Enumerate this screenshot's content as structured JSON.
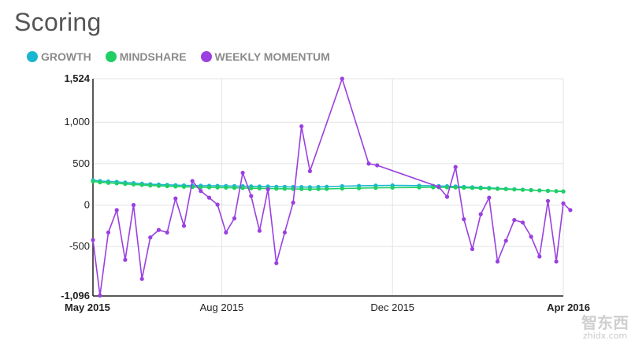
{
  "header": {
    "title": "Scoring"
  },
  "legend": [
    {
      "label": "GROWTH",
      "color": "#19b7cf"
    },
    {
      "label": "MINDSHARE",
      "color": "#1fcf64"
    },
    {
      "label": "WEEKLY MOMENTUM",
      "color": "#9a3fe0"
    }
  ],
  "watermark": {
    "main": "智东西",
    "sub": "zhidx.com"
  },
  "chart_data": {
    "type": "line",
    "title": "Scoring",
    "xlabel": "",
    "ylabel": "",
    "xlim": [
      "2015-05-01",
      "2016-04-01"
    ],
    "ylim": [
      -1096,
      1524
    ],
    "y_ticks": [
      {
        "label": "1,524",
        "value": 1524,
        "bold": true
      },
      {
        "label": "1,000",
        "value": 1000,
        "bold": false
      },
      {
        "label": "500",
        "value": 500,
        "bold": false
      },
      {
        "label": "0",
        "value": 0,
        "bold": false
      },
      {
        "label": "-500",
        "value": -500,
        "bold": false
      },
      {
        "label": "-1,096",
        "value": -1096,
        "bold": true
      }
    ],
    "x_ticks": [
      {
        "label": "May 2015",
        "date": "2015-05-01",
        "bold": true,
        "grid": false
      },
      {
        "label": "Aug 2015",
        "date": "2015-08-01",
        "bold": false,
        "grid": true
      },
      {
        "label": "Dec 2015",
        "date": "2015-12-01",
        "bold": false,
        "grid": true
      },
      {
        "label": "Apr 2016",
        "date": "2016-04-01",
        "bold": true,
        "grid": true
      }
    ],
    "grid": true,
    "legend_position": "top-left",
    "series": [
      {
        "name": "GROWTH",
        "color": "#19b7cf",
        "points": [
          [
            "2015-05-01",
            300
          ],
          [
            "2015-05-06",
            290
          ],
          [
            "2015-05-12",
            285
          ],
          [
            "2015-05-18",
            280
          ],
          [
            "2015-05-24",
            272
          ],
          [
            "2015-05-30",
            265
          ],
          [
            "2015-06-05",
            258
          ],
          [
            "2015-06-11",
            252
          ],
          [
            "2015-06-17",
            248
          ],
          [
            "2015-06-23",
            244
          ],
          [
            "2015-06-29",
            241
          ],
          [
            "2015-07-05",
            238
          ],
          [
            "2015-07-11",
            236
          ],
          [
            "2015-07-17",
            234
          ],
          [
            "2015-07-23",
            233
          ],
          [
            "2015-07-29",
            232
          ],
          [
            "2015-08-04",
            231
          ],
          [
            "2015-08-10",
            229
          ],
          [
            "2015-08-16",
            228
          ],
          [
            "2015-08-22",
            226
          ],
          [
            "2015-08-28",
            225
          ],
          [
            "2015-09-03",
            224
          ],
          [
            "2015-09-09",
            222
          ],
          [
            "2015-09-15",
            221
          ],
          [
            "2015-09-21",
            219
          ],
          [
            "2015-09-27",
            218
          ],
          [
            "2015-10-03",
            217
          ],
          [
            "2015-10-09",
            219
          ],
          [
            "2015-10-15",
            222
          ],
          [
            "2015-10-26",
            228
          ],
          [
            "2015-11-07",
            232
          ],
          [
            "2015-11-19",
            236
          ],
          [
            "2015-12-01",
            238
          ],
          [
            "2015-12-20",
            235
          ],
          [
            "2015-12-30",
            232
          ],
          [
            "2016-01-03",
            230
          ],
          [
            "2016-01-09",
            228
          ],
          [
            "2016-01-15",
            224
          ],
          [
            "2016-01-21",
            220
          ],
          [
            "2016-01-27",
            216
          ],
          [
            "2016-02-02",
            212
          ],
          [
            "2016-02-08",
            207
          ],
          [
            "2016-02-14",
            202
          ],
          [
            "2016-02-20",
            197
          ],
          [
            "2016-02-26",
            192
          ],
          [
            "2016-03-03",
            187
          ],
          [
            "2016-03-09",
            182
          ],
          [
            "2016-03-15",
            177
          ],
          [
            "2016-03-21",
            172
          ],
          [
            "2016-03-27",
            168
          ],
          [
            "2016-04-01",
            165
          ]
        ]
      },
      {
        "name": "MINDSHARE",
        "color": "#1fcf64",
        "points": [
          [
            "2015-05-01",
            285
          ],
          [
            "2015-05-06",
            275
          ],
          [
            "2015-05-12",
            268
          ],
          [
            "2015-05-18",
            262
          ],
          [
            "2015-05-24",
            255
          ],
          [
            "2015-05-30",
            249
          ],
          [
            "2015-06-05",
            243
          ],
          [
            "2015-06-11",
            237
          ],
          [
            "2015-06-17",
            232
          ],
          [
            "2015-06-23",
            228
          ],
          [
            "2015-06-29",
            224
          ],
          [
            "2015-07-05",
            221
          ],
          [
            "2015-07-11",
            218
          ],
          [
            "2015-07-17",
            216
          ],
          [
            "2015-07-23",
            214
          ],
          [
            "2015-07-29",
            212
          ],
          [
            "2015-08-04",
            210
          ],
          [
            "2015-08-10",
            208
          ],
          [
            "2015-08-16",
            206
          ],
          [
            "2015-08-22",
            204
          ],
          [
            "2015-08-28",
            202
          ],
          [
            "2015-09-03",
            200
          ],
          [
            "2015-09-09",
            198
          ],
          [
            "2015-09-15",
            197
          ],
          [
            "2015-09-21",
            195
          ],
          [
            "2015-09-27",
            193
          ],
          [
            "2015-10-03",
            192
          ],
          [
            "2015-10-09",
            193
          ],
          [
            "2015-10-15",
            195
          ],
          [
            "2015-10-26",
            200
          ],
          [
            "2015-11-07",
            204
          ],
          [
            "2015-11-19",
            208
          ],
          [
            "2015-12-01",
            210
          ],
          [
            "2015-12-20",
            212
          ],
          [
            "2015-12-30",
            214
          ],
          [
            "2016-01-03",
            215
          ],
          [
            "2016-01-09",
            214
          ],
          [
            "2016-01-15",
            212
          ],
          [
            "2016-01-21",
            209
          ],
          [
            "2016-01-27",
            206
          ],
          [
            "2016-02-02",
            203
          ],
          [
            "2016-02-08",
            200
          ],
          [
            "2016-02-14",
            196
          ],
          [
            "2016-02-20",
            192
          ],
          [
            "2016-02-26",
            188
          ],
          [
            "2016-03-03",
            184
          ],
          [
            "2016-03-09",
            180
          ],
          [
            "2016-03-15",
            176
          ],
          [
            "2016-03-21",
            172
          ],
          [
            "2016-03-27",
            168
          ],
          [
            "2016-04-01",
            165
          ]
        ]
      },
      {
        "name": "WEEKLY MOMENTUM",
        "color": "#9a3fe0",
        "points": [
          [
            "2015-05-01",
            -420
          ],
          [
            "2015-05-06",
            -1090
          ],
          [
            "2015-05-12",
            -330
          ],
          [
            "2015-05-18",
            -60
          ],
          [
            "2015-05-24",
            -660
          ],
          [
            "2015-05-30",
            0
          ],
          [
            "2015-06-05",
            -890
          ],
          [
            "2015-06-11",
            -390
          ],
          [
            "2015-06-17",
            -300
          ],
          [
            "2015-06-23",
            -330
          ],
          [
            "2015-06-29",
            80
          ],
          [
            "2015-07-05",
            -250
          ],
          [
            "2015-07-11",
            290
          ],
          [
            "2015-07-17",
            170
          ],
          [
            "2015-07-23",
            90
          ],
          [
            "2015-07-29",
            5
          ],
          [
            "2015-08-04",
            -330
          ],
          [
            "2015-08-10",
            -160
          ],
          [
            "2015-08-16",
            390
          ],
          [
            "2015-08-22",
            110
          ],
          [
            "2015-08-28",
            -310
          ],
          [
            "2015-09-03",
            190
          ],
          [
            "2015-09-09",
            -700
          ],
          [
            "2015-09-15",
            -330
          ],
          [
            "2015-09-21",
            30
          ],
          [
            "2015-09-27",
            950
          ],
          [
            "2015-10-03",
            410
          ],
          [
            "2015-10-26",
            1524
          ],
          [
            "2015-11-14",
            500
          ],
          [
            "2015-11-20",
            480
          ],
          [
            "2016-01-03",
            220
          ],
          [
            "2016-01-09",
            100
          ],
          [
            "2016-01-15",
            460
          ],
          [
            "2016-01-21",
            -170
          ],
          [
            "2016-01-27",
            -530
          ],
          [
            "2016-02-02",
            -110
          ],
          [
            "2016-02-08",
            90
          ],
          [
            "2016-02-14",
            -680
          ],
          [
            "2016-02-20",
            -430
          ],
          [
            "2016-02-26",
            -180
          ],
          [
            "2016-03-03",
            -210
          ],
          [
            "2016-03-09",
            -380
          ],
          [
            "2016-03-15",
            -620
          ],
          [
            "2016-03-21",
            50
          ],
          [
            "2016-03-27",
            -680
          ],
          [
            "2016-04-01",
            20
          ],
          [
            "2016-04-06",
            -60
          ]
        ]
      }
    ]
  }
}
